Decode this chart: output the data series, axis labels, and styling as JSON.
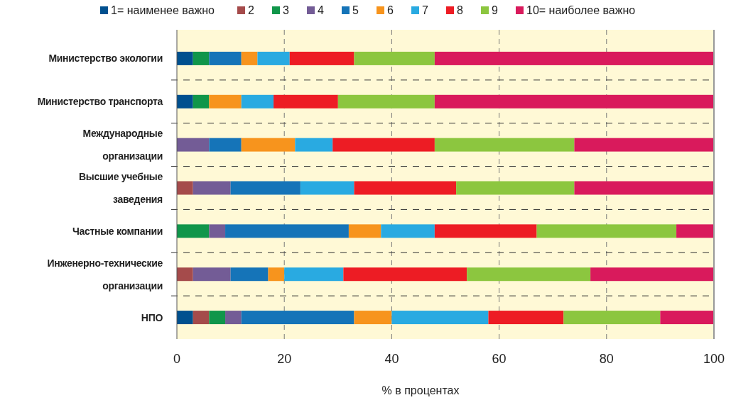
{
  "chart_data": {
    "type": "bar",
    "orientation": "horizontal",
    "stacked": true,
    "categories": [
      "Министерство экологии",
      "Министерство транспорта",
      "Международные организации",
      "Высшие учебные заведения",
      "Частные компании",
      "Инженерно-технические организации",
      "НПО"
    ],
    "series": [
      {
        "name": "1= наименее важно",
        "color": "#00508f",
        "values": [
          3,
          3,
          0,
          0,
          0,
          0,
          3
        ]
      },
      {
        "name": "2",
        "color": "#a54b4b",
        "values": [
          0,
          0,
          0,
          3,
          0,
          3,
          3
        ]
      },
      {
        "name": "3",
        "color": "#10964a",
        "values": [
          3,
          3,
          0,
          0,
          6,
          0,
          3
        ]
      },
      {
        "name": "4",
        "color": "#735c96",
        "values": [
          0,
          0,
          6,
          7,
          3,
          7,
          3
        ]
      },
      {
        "name": "5",
        "color": "#1574b8",
        "values": [
          6,
          0,
          6,
          13,
          23,
          7,
          21
        ]
      },
      {
        "name": "6",
        "color": "#f7941d",
        "values": [
          3,
          6,
          10,
          0,
          6,
          3,
          7
        ]
      },
      {
        "name": "7",
        "color": "#29aae1",
        "values": [
          6,
          6,
          7,
          10,
          10,
          11,
          18
        ]
      },
      {
        "name": "8",
        "color": "#ed1c24",
        "values": [
          12,
          12,
          19,
          19,
          19,
          23,
          14
        ]
      },
      {
        "name": "9",
        "color": "#8cc63f",
        "values": [
          15,
          18,
          26,
          22,
          26,
          23,
          18
        ]
      },
      {
        "name": "10= наиболее важно",
        "color": "#d91a5c",
        "values": [
          52,
          52,
          26,
          26,
          7,
          23,
          10
        ]
      }
    ],
    "xlim": [
      0,
      100
    ],
    "xticks": [
      0,
      20,
      40,
      60,
      80,
      100
    ],
    "xlabel": "%  в процентах",
    "grid": true,
    "legend": "top"
  }
}
